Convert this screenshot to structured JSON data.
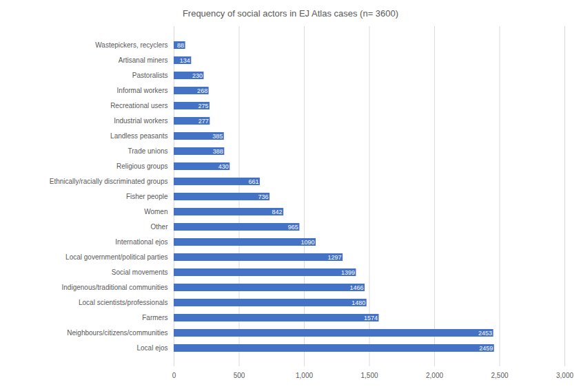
{
  "chart_data": {
    "type": "bar",
    "orientation": "horizontal",
    "title": "Frequency of social actors in EJ Atlas cases (n= 3600)",
    "categories": [
      "Wastepickers, recyclers",
      "Artisanal miners",
      "Pastoralists",
      "Informal workers",
      "Recreational users",
      "Industrial workers",
      "Landless peasants",
      "Trade unions",
      "Religious groups",
      "Ethnically/racially discriminated groups",
      "Fisher people",
      "Women",
      "Other",
      "International ejos",
      "Local government/political parties",
      "Social movements",
      "Indigenous/traditional communities",
      "Local scientists/professionals",
      "Farmers",
      "Neighbours/citizens/communities",
      "Local ejos"
    ],
    "values": [
      88,
      134,
      230,
      268,
      275,
      277,
      385,
      388,
      430,
      661,
      736,
      842,
      965,
      1090,
      1297,
      1399,
      1466,
      1480,
      1574,
      2453,
      2459
    ],
    "color": "#4472c4",
    "xlim": [
      0,
      3000
    ],
    "xticks": [
      0,
      500,
      1000,
      1500,
      2000,
      2500,
      3000
    ],
    "grid": true,
    "data_labels": true
  }
}
